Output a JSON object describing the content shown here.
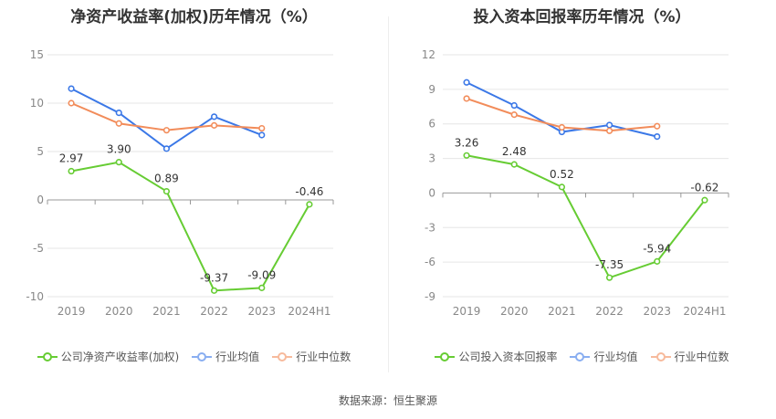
{
  "charts": [
    {
      "title": "净资产收益率(加权)历年情况（%）",
      "chart_data": {
        "type": "line",
        "title": "净资产收益率(加权)历年情况（%）",
        "categories": [
          "2019",
          "2020",
          "2021",
          "2022",
          "2023",
          "2024H1"
        ],
        "ylim": [
          -10,
          15
        ],
        "yticks": [
          15,
          10,
          5,
          0,
          -5,
          -10
        ],
        "grid": true,
        "legend": "bottom",
        "series": [
          {
            "name": "公司净资产收益率(加权)",
            "color": "#66cc33",
            "labels": true,
            "values": [
              2.97,
              3.9,
              0.89,
              -9.37,
              -9.09,
              -0.46
            ]
          },
          {
            "name": "行业均值",
            "color": "#3b78e7",
            "labels": false,
            "values": [
              11.5,
              9.0,
              5.3,
              8.6,
              6.7,
              null
            ]
          },
          {
            "name": "行业中位数",
            "color": "#f28c5a",
            "labels": false,
            "values": [
              10.0,
              7.9,
              7.2,
              7.7,
              7.4,
              null
            ]
          }
        ]
      }
    },
    {
      "title": "投入资本回报率历年情况（%）",
      "chart_data": {
        "type": "line",
        "title": "投入资本回报率历年情况（%）",
        "categories": [
          "2019",
          "2020",
          "2021",
          "2022",
          "2023",
          "2024H1"
        ],
        "ylim": [
          -9,
          12
        ],
        "yticks": [
          12,
          9,
          6,
          3,
          0,
          -3,
          -6,
          -9
        ],
        "grid": true,
        "legend": "bottom",
        "series": [
          {
            "name": "公司投入资本回报率",
            "color": "#66cc33",
            "labels": true,
            "values": [
              3.26,
              2.48,
              0.52,
              -7.35,
              -5.94,
              -0.62
            ]
          },
          {
            "name": "行业均值",
            "color": "#3b78e7",
            "labels": false,
            "values": [
              9.6,
              7.6,
              5.3,
              5.9,
              4.9,
              null
            ]
          },
          {
            "name": "行业中位数",
            "color": "#f28c5a",
            "labels": false,
            "values": [
              8.2,
              6.8,
              5.7,
              5.4,
              5.8,
              null
            ]
          }
        ]
      }
    }
  ],
  "source": "数据来源：恒生聚源"
}
